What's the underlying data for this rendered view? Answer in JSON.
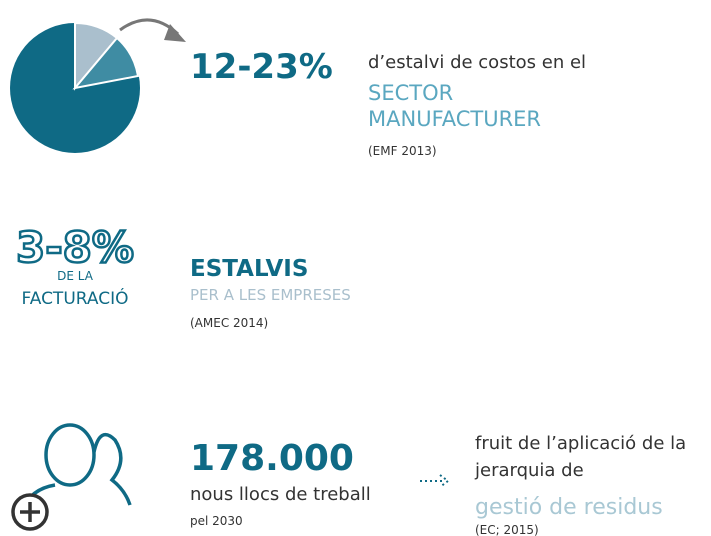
{
  "sections": [
    {
      "figure": "12-23%",
      "lines": [
        "d’estalvi de costos en el",
        "SECTOR",
        "MANUFACTURER"
      ],
      "source": "(EMF 2013)"
    },
    {
      "figure": "3-8%",
      "figure_caption": [
        "DE LA",
        "FACTURACIÓ"
      ],
      "lines": [
        "ESTALVIS",
        "PER A LES EMPRESES"
      ],
      "source": "(AMEC 2014)"
    },
    {
      "figure": "178.000",
      "lines": [
        "nous llocs de treball"
      ],
      "source": "pel 2030",
      "note": [
        "fruit de l’aplicació de la",
        "jerarquia de",
        "gestió de residus"
      ],
      "note_source": "(EC; 2015)"
    }
  ]
}
